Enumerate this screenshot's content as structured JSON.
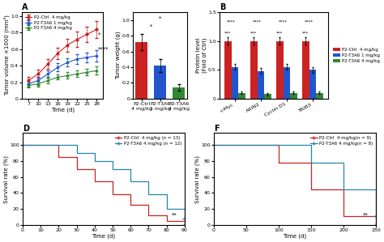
{
  "chart_data": [
    {
      "type": "line",
      "title": "A",
      "xlabel": "Time (d)",
      "ylabel": "Tumor volume ×1000 (mm³)",
      "x": [
        7,
        10,
        13,
        16,
        19,
        22,
        25,
        28
      ],
      "series": [
        {
          "name": "P2-Ctrl  4 mg/kg",
          "color": "#cc2222",
          "marker": "circle",
          "values": [
            0.22,
            0.3,
            0.42,
            0.55,
            0.65,
            0.72,
            0.78,
            0.84
          ],
          "errors": [
            0.04,
            0.05,
            0.06,
            0.07,
            0.08,
            0.09,
            0.09,
            0.1
          ]
        },
        {
          "name": "P2-T3A6 1 mg/kg",
          "color": "#2255cc",
          "marker": "square",
          "values": [
            0.18,
            0.22,
            0.3,
            0.38,
            0.44,
            0.48,
            0.5,
            0.52
          ],
          "errors": [
            0.03,
            0.04,
            0.04,
            0.05,
            0.05,
            0.06,
            0.06,
            0.07
          ]
        },
        {
          "name": "P2-T3A6 4 mg/kg",
          "color": "#338833",
          "marker": "triangle",
          "values": [
            0.16,
            0.18,
            0.22,
            0.26,
            0.28,
            0.3,
            0.32,
            0.34
          ],
          "errors": [
            0.02,
            0.03,
            0.03,
            0.03,
            0.04,
            0.04,
            0.04,
            0.05
          ]
        }
      ],
      "xlim": [
        5,
        30
      ],
      "xticks": [
        7,
        10,
        13,
        16,
        19,
        22,
        25,
        28
      ],
      "ylim": [
        0,
        1.05
      ],
      "yticks": [
        0,
        0.2,
        0.4,
        0.6,
        0.8,
        1.0
      ],
      "legend": "upper left",
      "annotations": [
        {
          "text": "*",
          "x": 28.3,
          "y": 0.78
        },
        {
          "text": "****",
          "x": 28.3,
          "y": 0.6
        }
      ]
    },
    {
      "type": "bar",
      "ylabel": "Tumor weight (g)",
      "categories": [
        "P2-Ctrl\n4 mg/kg",
        "P2-T3A6\n1 mg/kg",
        "P2-T3A6\n4 mg/kg"
      ],
      "values": [
        0.72,
        0.42,
        0.14
      ],
      "errors": [
        0.1,
        0.08,
        0.04
      ],
      "colors": [
        "#cc2222",
        "#2255cc",
        "#338833"
      ],
      "ylim": [
        0,
        1.1
      ],
      "yticks": [
        0,
        0.2,
        0.4,
        0.6,
        0.8,
        1.0
      ],
      "annotations": [
        {
          "text": "*",
          "x": 0.5,
          "y": 0.89
        },
        {
          "text": "*",
          "x": 1,
          "y": 0.99
        }
      ]
    },
    {
      "type": "bar",
      "title": "B",
      "ylabel": "Protein level\n(Fold of Ctrl)",
      "categories": [
        "c-Myc",
        "AXIN2",
        "Cyclin D1",
        "TRIB3"
      ],
      "series": [
        {
          "name": "P2-Ctrl  4 mg/kg",
          "color": "#cc2222",
          "values": [
            1.0,
            1.0,
            1.0,
            1.0
          ],
          "errors": [
            0.06,
            0.06,
            0.06,
            0.06
          ]
        },
        {
          "name": "P2-T3A6 1 mg/kg",
          "color": "#2255cc",
          "values": [
            0.55,
            0.48,
            0.55,
            0.5
          ],
          "errors": [
            0.05,
            0.05,
            0.05,
            0.05
          ]
        },
        {
          "name": "P2-T3A6 4 mg/kg",
          "color": "#338833",
          "values": [
            0.1,
            0.08,
            0.1,
            0.1
          ],
          "errors": [
            0.02,
            0.02,
            0.02,
            0.02
          ]
        }
      ],
      "ylim": [
        0,
        1.5
      ],
      "yticks": [
        0,
        0.5,
        1.0,
        1.5
      ],
      "legend": "right",
      "annotations": [
        {
          "text": "***",
          "category": 0,
          "series": [
            0
          ],
          "y": 1.1
        },
        {
          "text": "***",
          "category": 1,
          "series": [
            0
          ],
          "y": 1.1
        },
        {
          "text": "***",
          "category": 2,
          "series": [
            0
          ],
          "y": 1.1
        },
        {
          "text": "***",
          "category": 3,
          "series": [
            0
          ],
          "y": 1.1
        },
        {
          "text": "****",
          "category": 0,
          "series": [
            0,
            1
          ],
          "y": 1.3
        },
        {
          "text": "****",
          "category": 1,
          "series": [
            0,
            1
          ],
          "y": 1.3
        },
        {
          "text": "****",
          "category": 2,
          "series": [
            0,
            1
          ],
          "y": 1.3
        },
        {
          "text": "****",
          "category": 3,
          "series": [
            0,
            1
          ],
          "y": 1.3
        }
      ]
    },
    {
      "type": "step",
      "title": "D",
      "xlabel": "Time (d)",
      "ylabel": "Survival rate (%)",
      "x": [
        0,
        10,
        20,
        30,
        40,
        50,
        60,
        70,
        80,
        90
      ],
      "series": [
        {
          "name": "P2-Ctrl  4 mg/kg (n = 13)",
          "color": "#cc2222",
          "marker": "plus",
          "values": [
            100,
            100,
            85,
            70,
            55,
            38,
            25,
            12,
            5,
            0
          ]
        },
        {
          "name": "P2-T3A6 4 mg/kg (n = 12)",
          "color": "#2288aa",
          "marker": "plus",
          "values": [
            100,
            100,
            100,
            90,
            80,
            70,
            55,
            38,
            20,
            8
          ]
        }
      ],
      "xlim": [
        0,
        90
      ],
      "xticks": [
        0,
        10,
        20,
        30,
        40,
        50,
        60,
        70,
        80,
        90
      ],
      "ylim": [
        0,
        115
      ],
      "yticks": [
        0,
        20,
        40,
        60,
        80,
        100
      ],
      "legend": "upper right",
      "annotations": [
        {
          "text": "**",
          "x": 82.8,
          "y": 9.2
        }
      ]
    },
    {
      "type": "step",
      "title": "F",
      "xlabel": "Time (d)",
      "ylabel": "Survival rate (%)",
      "x": [
        0,
        50,
        100,
        150,
        200,
        250
      ],
      "series": [
        {
          "name": "P2-Ctrl  4 mg/kg(n = 9)",
          "color": "#cc2222",
          "marker": "plus",
          "values": [
            100,
            100,
            78,
            44,
            11,
            0
          ]
        },
        {
          "name": "P2-T3A6 4 mg/kg(n = 8)",
          "color": "#2288aa",
          "marker": "plus",
          "values": [
            100,
            100,
            100,
            78,
            44,
            11
          ]
        }
      ],
      "xlim": [
        0,
        250
      ],
      "xticks": [
        0,
        50,
        100,
        150,
        200,
        250
      ],
      "ylim": [
        0,
        115
      ],
      "yticks": [
        0,
        20,
        40,
        60,
        80,
        100
      ],
      "legend": "upper right",
      "annotations": [
        {
          "text": "**",
          "x": 230,
          "y": 9.2
        }
      ]
    }
  ]
}
